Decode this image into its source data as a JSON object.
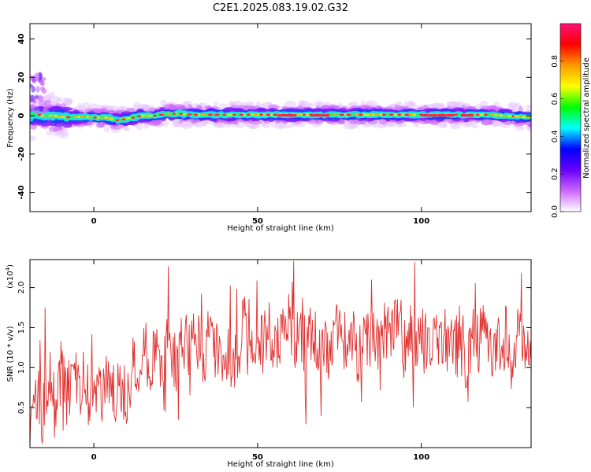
{
  "page": {
    "title": "C2E1.2025.083.19.02.G32"
  },
  "chart_data": [
    {
      "type": "heatmap",
      "xlabel": "Height of straight line (km)",
      "ylabel": "Frequency (Hz)",
      "xlim": [
        -19.5,
        133.5
      ],
      "ylim": [
        -50,
        48
      ],
      "x_ticks": [
        0,
        50,
        100
      ],
      "y_ticks": [
        -40,
        -20,
        0,
        20,
        40
      ],
      "grid": false,
      "ridge": {
        "x": [
          -19,
          -16,
          -12,
          -8,
          -4,
          0,
          4,
          7,
          10,
          14,
          18,
          22,
          26,
          30,
          40,
          50,
          60,
          70,
          80,
          90,
          100,
          110,
          120,
          130,
          133
        ],
        "y": [
          1,
          0,
          0,
          -1,
          -0.5,
          -1,
          -1,
          -2.5,
          -1.5,
          0,
          0,
          1,
          1,
          0.5,
          0.5,
          0.5,
          0.5,
          0.5,
          0.5,
          0.5,
          0.5,
          0.5,
          0.5,
          -0.5,
          -1
        ]
      },
      "colorbar": {
        "label": "Normalized spectral amplitude",
        "range": [
          0,
          1
        ],
        "ticks": [
          0.0,
          0.2,
          0.4,
          0.6,
          0.8
        ],
        "tick_labels": [
          "0.0",
          "0.2",
          "0.4",
          "0.6",
          "0.8"
        ],
        "colors": [
          "#ffffff",
          "#cc66ff",
          "#6600ff",
          "#0000ff",
          "#00ffff",
          "#00ff00",
          "#ffff00",
          "#ff9900",
          "#ff0000",
          "#ff1177"
        ]
      }
    },
    {
      "type": "line",
      "xlabel": "Height of straight line (km)",
      "ylabel": "SNR (10 * v/v)",
      "y_multiplier": "(x10",
      "y_multiplier_exp": "4",
      "y_multiplier_close": ")",
      "xlim": [
        -19.5,
        133.5
      ],
      "ylim": [
        0,
        2.35
      ],
      "x_ticks": [
        0,
        50,
        100
      ],
      "y_ticks": [
        0.5,
        1.0,
        1.5,
        2.0
      ],
      "y_tick_labels": [
        "0.5",
        "1.0",
        "1.5",
        "2.0"
      ],
      "color": "#e03030",
      "grid": false,
      "series": [
        {
          "x": [
            -19.5,
            -18,
            -16,
            -14,
            -12,
            -10,
            -8,
            -6,
            -4,
            -2,
            0,
            2,
            4,
            6,
            8,
            10,
            12,
            14,
            16,
            18,
            20,
            22,
            24,
            26,
            28,
            30,
            32,
            34,
            36,
            38,
            40,
            42,
            44,
            46,
            48,
            50,
            52,
            54,
            56,
            58,
            60,
            62,
            64,
            66,
            68,
            70,
            72,
            74,
            76,
            78,
            80,
            82,
            84,
            86,
            88,
            90,
            92,
            94,
            96,
            98,
            100,
            102,
            104,
            106,
            108,
            110,
            112,
            114,
            116,
            118,
            120,
            122,
            124,
            126,
            128,
            130,
            132,
            133.5
          ],
          "y": [
            0.3,
            0.6,
            0.5,
            0.8,
            0.6,
            0.9,
            0.7,
            0.8,
            0.75,
            0.7,
            0.8,
            0.75,
            0.9,
            0.7,
            0.8,
            0.6,
            0.9,
            1.0,
            1.1,
            1.2,
            1.0,
            1.3,
            1.2,
            1.1,
            1.4,
            1.2,
            1.3,
            1.1,
            1.6,
            1.2,
            1.3,
            1.0,
            1.2,
            1.5,
            1.1,
            1.4,
            1.3,
            1.5,
            1.2,
            1.6,
            1.3,
            1.4,
            1.2,
            1.5,
            1.3,
            1.4,
            1.1,
            1.6,
            1.3,
            1.5,
            1.2,
            1.3,
            1.4,
            1.2,
            1.5,
            1.3,
            1.6,
            1.2,
            1.4,
            1.3,
            1.5,
            1.2,
            1.4,
            1.3,
            1.2,
            1.4,
            1.1,
            1.2,
            1.3,
            1.4,
            1.3,
            1.2,
            1.3,
            1.4,
            1.0,
            1.5,
            1.2,
            1.1
          ]
        }
      ]
    }
  ]
}
